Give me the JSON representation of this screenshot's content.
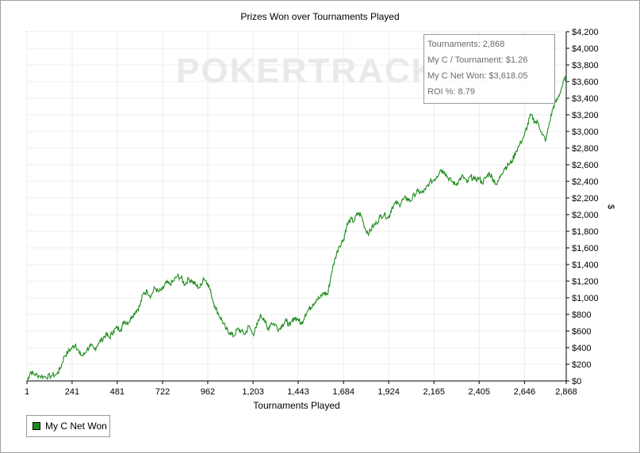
{
  "chart_data": {
    "type": "line",
    "title": "Prizes Won over Tournaments Played",
    "xlabel": "Tournaments Played",
    "ylabel": "$",
    "x_ticks": [
      "1",
      "241",
      "481",
      "722",
      "962",
      "1,203",
      "1,443",
      "1,684",
      "1,924",
      "2,165",
      "2,405",
      "2,646",
      "2,868"
    ],
    "y_ticks": [
      "$0",
      "$200",
      "$400",
      "$600",
      "$800",
      "$1,000",
      "$1,200",
      "$1,400",
      "$1,600",
      "$1,800",
      "$2,000",
      "$2,200",
      "$2,400",
      "$2,600",
      "$2,800",
      "$3,000",
      "$3,200",
      "$3,400",
      "$3,600",
      "$3,800",
      "$4,000",
      "$4,200"
    ],
    "xlim": [
      1,
      2868
    ],
    "ylim": [
      0,
      4200
    ],
    "grid": true,
    "legend_position": "bottom-left",
    "watermark": "POKERTRACKER",
    "series": [
      {
        "name": "My C Net Won",
        "color": "#1e8c1e",
        "points": [
          [
            1,
            0
          ],
          [
            20,
            110
          ],
          [
            40,
            80
          ],
          [
            70,
            60
          ],
          [
            100,
            50
          ],
          [
            130,
            60
          ],
          [
            160,
            80
          ],
          [
            180,
            160
          ],
          [
            200,
            300
          ],
          [
            220,
            350
          ],
          [
            241,
            400
          ],
          [
            260,
            440
          ],
          [
            280,
            330
          ],
          [
            300,
            300
          ],
          [
            320,
            380
          ],
          [
            340,
            420
          ],
          [
            360,
            380
          ],
          [
            380,
            450
          ],
          [
            400,
            500
          ],
          [
            420,
            560
          ],
          [
            440,
            520
          ],
          [
            460,
            600
          ],
          [
            481,
            640
          ],
          [
            500,
            620
          ],
          [
            520,
            720
          ],
          [
            540,
            700
          ],
          [
            560,
            780
          ],
          [
            580,
            840
          ],
          [
            600,
            900
          ],
          [
            620,
            1050
          ],
          [
            640,
            1080
          ],
          [
            660,
            1020
          ],
          [
            680,
            1120
          ],
          [
            700,
            1070
          ],
          [
            722,
            1100
          ],
          [
            740,
            1180
          ],
          [
            760,
            1160
          ],
          [
            780,
            1200
          ],
          [
            800,
            1260
          ],
          [
            820,
            1240
          ],
          [
            840,
            1160
          ],
          [
            860,
            1230
          ],
          [
            880,
            1200
          ],
          [
            900,
            1150
          ],
          [
            920,
            1120
          ],
          [
            940,
            1240
          ],
          [
            962,
            1180
          ],
          [
            980,
            1050
          ],
          [
            1000,
            900
          ],
          [
            1020,
            800
          ],
          [
            1040,
            720
          ],
          [
            1060,
            620
          ],
          [
            1080,
            580
          ],
          [
            1100,
            540
          ],
          [
            1120,
            620
          ],
          [
            1140,
            600
          ],
          [
            1160,
            560
          ],
          [
            1180,
            660
          ],
          [
            1203,
            560
          ],
          [
            1220,
            640
          ],
          [
            1240,
            780
          ],
          [
            1260,
            760
          ],
          [
            1280,
            620
          ],
          [
            1300,
            700
          ],
          [
            1320,
            680
          ],
          [
            1340,
            620
          ],
          [
            1360,
            680
          ],
          [
            1380,
            720
          ],
          [
            1400,
            660
          ],
          [
            1420,
            760
          ],
          [
            1443,
            740
          ],
          [
            1460,
            680
          ],
          [
            1480,
            800
          ],
          [
            1500,
            860
          ],
          [
            1520,
            920
          ],
          [
            1540,
            980
          ],
          [
            1560,
            1000
          ],
          [
            1580,
            1060
          ],
          [
            1600,
            1040
          ],
          [
            1620,
            1300
          ],
          [
            1640,
            1480
          ],
          [
            1660,
            1620
          ],
          [
            1684,
            1700
          ],
          [
            1700,
            1860
          ],
          [
            1720,
            1940
          ],
          [
            1740,
            1920
          ],
          [
            1760,
            2020
          ],
          [
            1780,
            1980
          ],
          [
            1800,
            1820
          ],
          [
            1820,
            1780
          ],
          [
            1840,
            1860
          ],
          [
            1860,
            1900
          ],
          [
            1880,
            1980
          ],
          [
            1900,
            2000
          ],
          [
            1924,
            1960
          ],
          [
            1940,
            2080
          ],
          [
            1960,
            2140
          ],
          [
            1980,
            2120
          ],
          [
            2000,
            2180
          ],
          [
            2020,
            2200
          ],
          [
            2040,
            2160
          ],
          [
            2060,
            2240
          ],
          [
            2080,
            2280
          ],
          [
            2100,
            2260
          ],
          [
            2120,
            2300
          ],
          [
            2140,
            2380
          ],
          [
            2165,
            2420
          ],
          [
            2180,
            2460
          ],
          [
            2200,
            2540
          ],
          [
            2220,
            2520
          ],
          [
            2240,
            2440
          ],
          [
            2260,
            2400
          ],
          [
            2280,
            2360
          ],
          [
            2300,
            2420
          ],
          [
            2320,
            2460
          ],
          [
            2340,
            2380
          ],
          [
            2360,
            2460
          ],
          [
            2380,
            2420
          ],
          [
            2405,
            2440
          ],
          [
            2420,
            2380
          ],
          [
            2440,
            2440
          ],
          [
            2460,
            2500
          ],
          [
            2480,
            2420
          ],
          [
            2500,
            2360
          ],
          [
            2520,
            2480
          ],
          [
            2540,
            2560
          ],
          [
            2560,
            2600
          ],
          [
            2580,
            2640
          ],
          [
            2600,
            2760
          ],
          [
            2620,
            2840
          ],
          [
            2646,
            2960
          ],
          [
            2660,
            3060
          ],
          [
            2680,
            3200
          ],
          [
            2700,
            3120
          ],
          [
            2720,
            3100
          ],
          [
            2740,
            2960
          ],
          [
            2760,
            2900
          ],
          [
            2780,
            3120
          ],
          [
            2800,
            3300
          ],
          [
            2820,
            3380
          ],
          [
            2840,
            3500
          ],
          [
            2860,
            3640
          ],
          [
            2868,
            3618.05
          ]
        ]
      }
    ]
  },
  "info_box": {
    "tournaments": "Tournaments: 2,868",
    "per_tournament": "My C / Tournament: $1.26",
    "net_won": "My C Net Won: $3,618.05",
    "roi": "ROI %: 8.79"
  },
  "legend": {
    "label": "My C Net Won",
    "color": "#1e8c1e"
  }
}
